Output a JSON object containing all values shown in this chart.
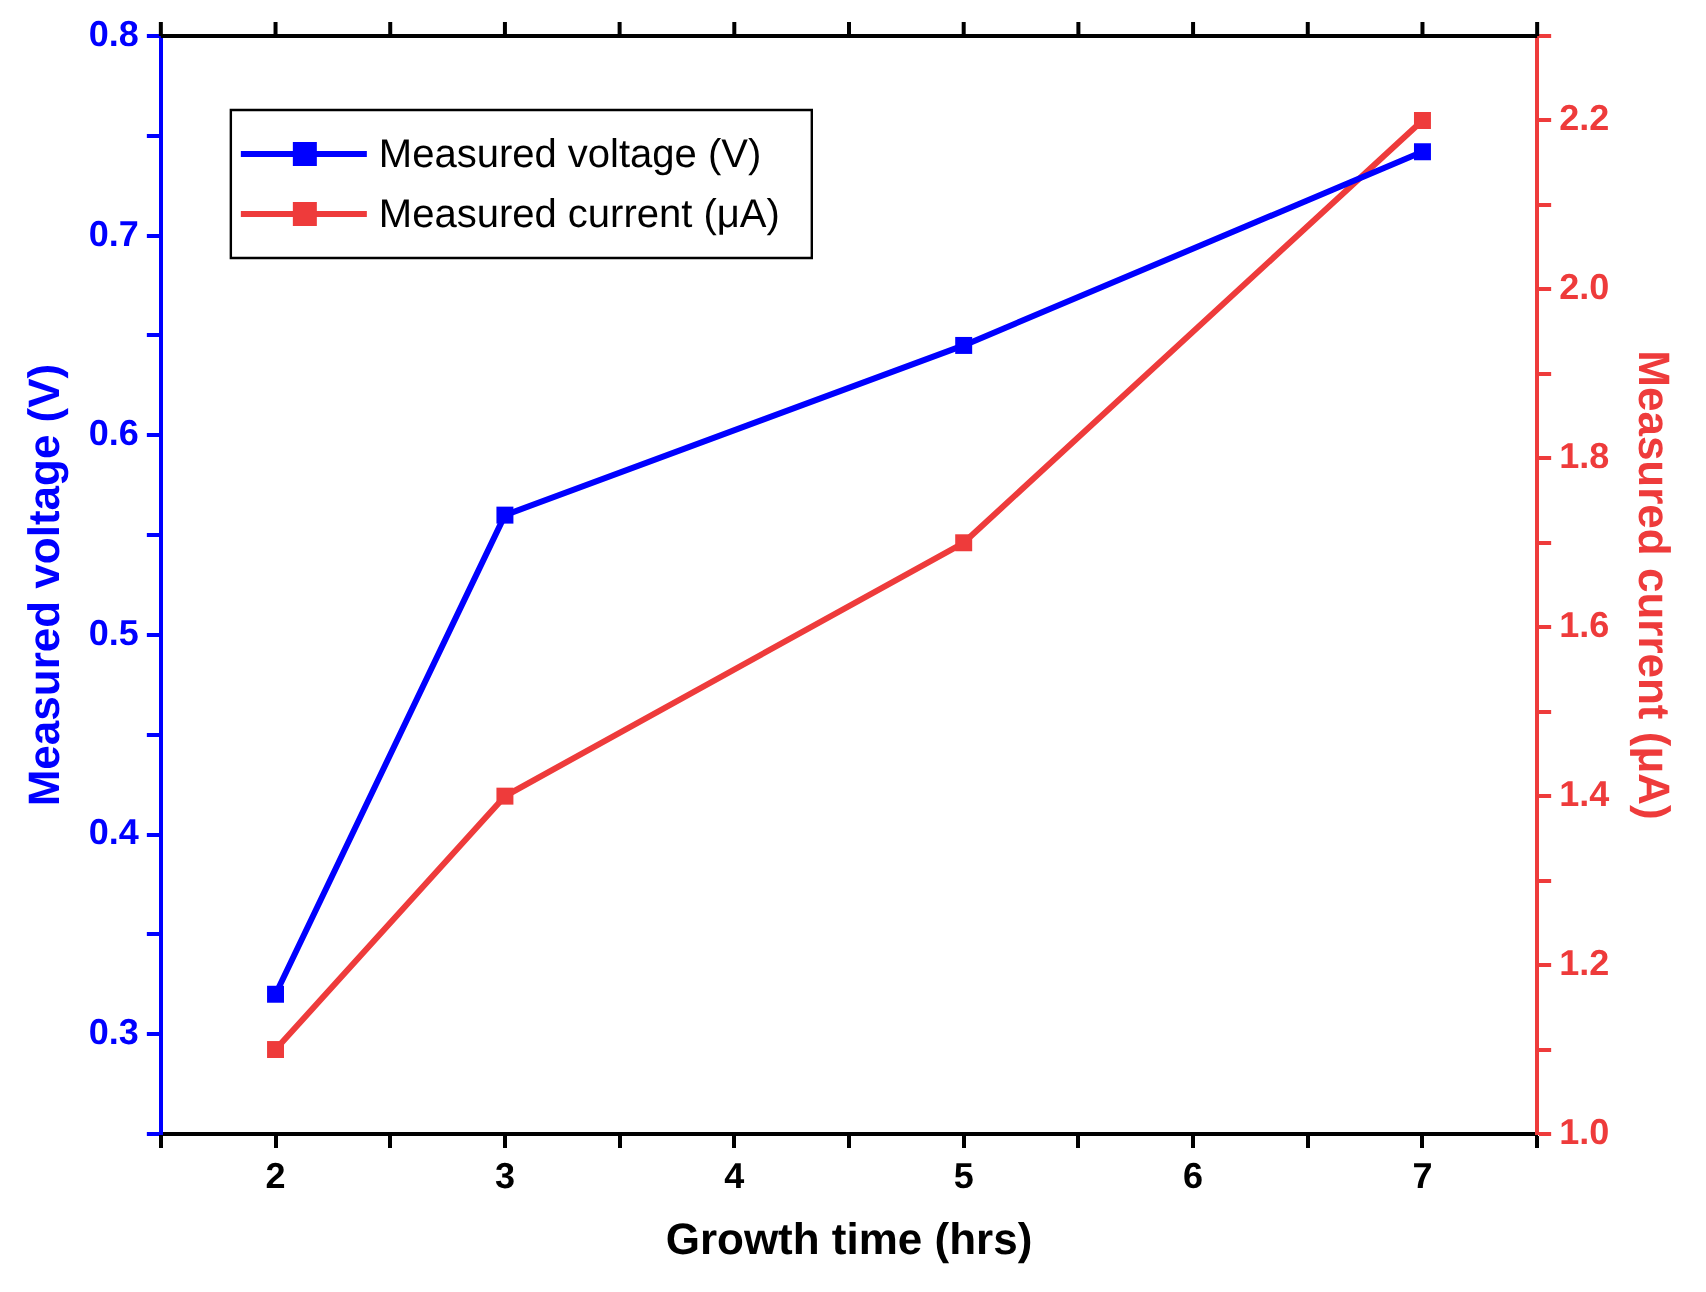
{
  "chart_data": {
    "type": "line",
    "xlabel": "Growth time (hrs)",
    "ylabel": "Measured voltage (V)",
    "y2label": "Measured current (μA)",
    "x": [
      2,
      3,
      5,
      7
    ],
    "series": [
      {
        "name": "Measured voltage (V)",
        "color": "#0000ff",
        "values": [
          0.32,
          0.56,
          0.645,
          0.742
        ]
      },
      {
        "name": "Measured current (μA)",
        "color": "#ee3b3b",
        "values": [
          1.1,
          1.4,
          1.7,
          2.2
        ],
        "axis": "y2"
      }
    ],
    "xlim": [
      1.5,
      7.5
    ],
    "xticks": [
      {
        "value": 1.5,
        "label": null
      },
      2,
      {
        "value": 2.5,
        "label": null
      },
      3,
      {
        "value": 3.5,
        "label": null
      },
      4,
      {
        "value": 4.5,
        "label": null
      },
      5,
      {
        "value": 5.5,
        "label": null
      },
      6,
      {
        "value": 6.5,
        "label": null
      },
      7,
      {
        "value": 7.5,
        "label": null
      }
    ],
    "ylim": [
      0.25,
      0.8
    ],
    "yticks": [
      {
        "value": 0.25,
        "label": null
      },
      {
        "value": 0.3,
        "label": "0.3"
      },
      {
        "value": 0.35,
        "label": null
      },
      {
        "value": 0.4,
        "label": "0.4"
      },
      {
        "value": 0.45,
        "label": null
      },
      {
        "value": 0.5,
        "label": "0.5"
      },
      {
        "value": 0.55,
        "label": null
      },
      {
        "value": 0.6,
        "label": "0.6"
      },
      {
        "value": 0.65,
        "label": null
      },
      {
        "value": 0.7,
        "label": "0.7"
      },
      {
        "value": 0.75,
        "label": null
      },
      {
        "value": 0.8,
        "label": "0.8"
      }
    ],
    "y2lim": [
      1.0,
      2.3
    ],
    "y2ticks": [
      {
        "value": 1.0,
        "label": "1.0"
      },
      {
        "value": 1.1,
        "label": null
      },
      {
        "value": 1.2,
        "label": "1.2"
      },
      {
        "value": 1.3,
        "label": null
      },
      {
        "value": 1.4,
        "label": "1.4"
      },
      {
        "value": 1.5,
        "label": null
      },
      {
        "value": 1.6,
        "label": "1.6"
      },
      {
        "value": 1.7,
        "label": null
      },
      {
        "value": 1.8,
        "label": "1.8"
      },
      {
        "value": 1.9,
        "label": null
      },
      {
        "value": 2.0,
        "label": "2.0"
      },
      {
        "value": 2.1,
        "label": null
      },
      {
        "value": 2.2,
        "label": "2.2"
      },
      {
        "value": 2.3,
        "label": null
      }
    ],
    "grid": false,
    "legend": "top left",
    "marker": "square",
    "line_style": "solid"
  }
}
